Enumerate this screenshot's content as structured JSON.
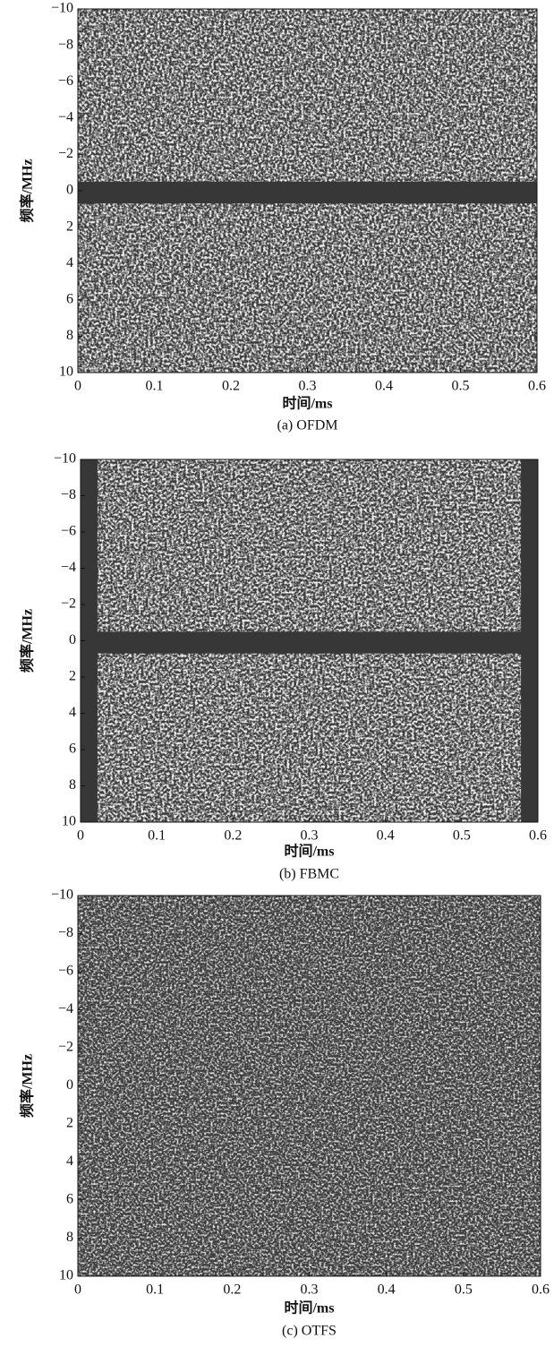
{
  "chart_data": [
    {
      "type": "heatmap",
      "xlabel": "时间/ms",
      "ylabel": "频率/MHz",
      "caption": "(a) OFDM",
      "xlim": [
        0,
        0.6
      ],
      "ylim": [
        -10,
        10
      ],
      "y_inverted": true,
      "xticks": [
        0,
        0.1,
        0.2,
        0.3,
        0.4,
        0.5,
        0.6
      ],
      "yticks": [
        {
          "value": -10,
          "label": "−10"
        },
        {
          "value": -8,
          "label": "−8"
        },
        {
          "value": -6,
          "label": "−6"
        },
        {
          "value": -4,
          "label": "−4"
        },
        {
          "value": -2,
          "label": "−2"
        },
        0,
        2,
        4,
        6,
        8,
        10
      ]
    },
    {
      "type": "heatmap",
      "xlabel": "时间/ms",
      "ylabel": "频率/MHz",
      "caption": "(b) FBMC",
      "xlim": [
        0,
        0.6
      ],
      "ylim": [
        -10,
        10
      ],
      "y_inverted": true,
      "xticks": [
        0,
        0.1,
        0.2,
        0.3,
        0.4,
        0.5,
        0.6
      ],
      "yticks": [
        {
          "value": -10,
          "label": "−10"
        },
        {
          "value": -8,
          "label": "−8"
        },
        {
          "value": -6,
          "label": "−6"
        },
        {
          "value": -4,
          "label": "−4"
        },
        {
          "value": -2,
          "label": "−2"
        },
        0,
        2,
        4,
        6,
        8,
        10
      ]
    },
    {
      "type": "heatmap",
      "xlabel": "时间/ms",
      "ylabel": "频率/MHz",
      "caption": "(c) OTFS",
      "xlim": [
        0,
        0.6
      ],
      "ylim": [
        -10,
        10
      ],
      "y_inverted": true,
      "xticks": [
        0,
        0.1,
        0.2,
        0.3,
        0.4,
        0.5,
        0.6
      ],
      "yticks": [
        {
          "value": -10,
          "label": "−10"
        },
        {
          "value": -8,
          "label": "−8"
        },
        {
          "value": -6,
          "label": "−6"
        },
        {
          "value": -4,
          "label": "−4"
        },
        {
          "value": -2,
          "label": "−2"
        },
        0,
        2,
        4,
        6,
        8,
        10
      ]
    }
  ]
}
